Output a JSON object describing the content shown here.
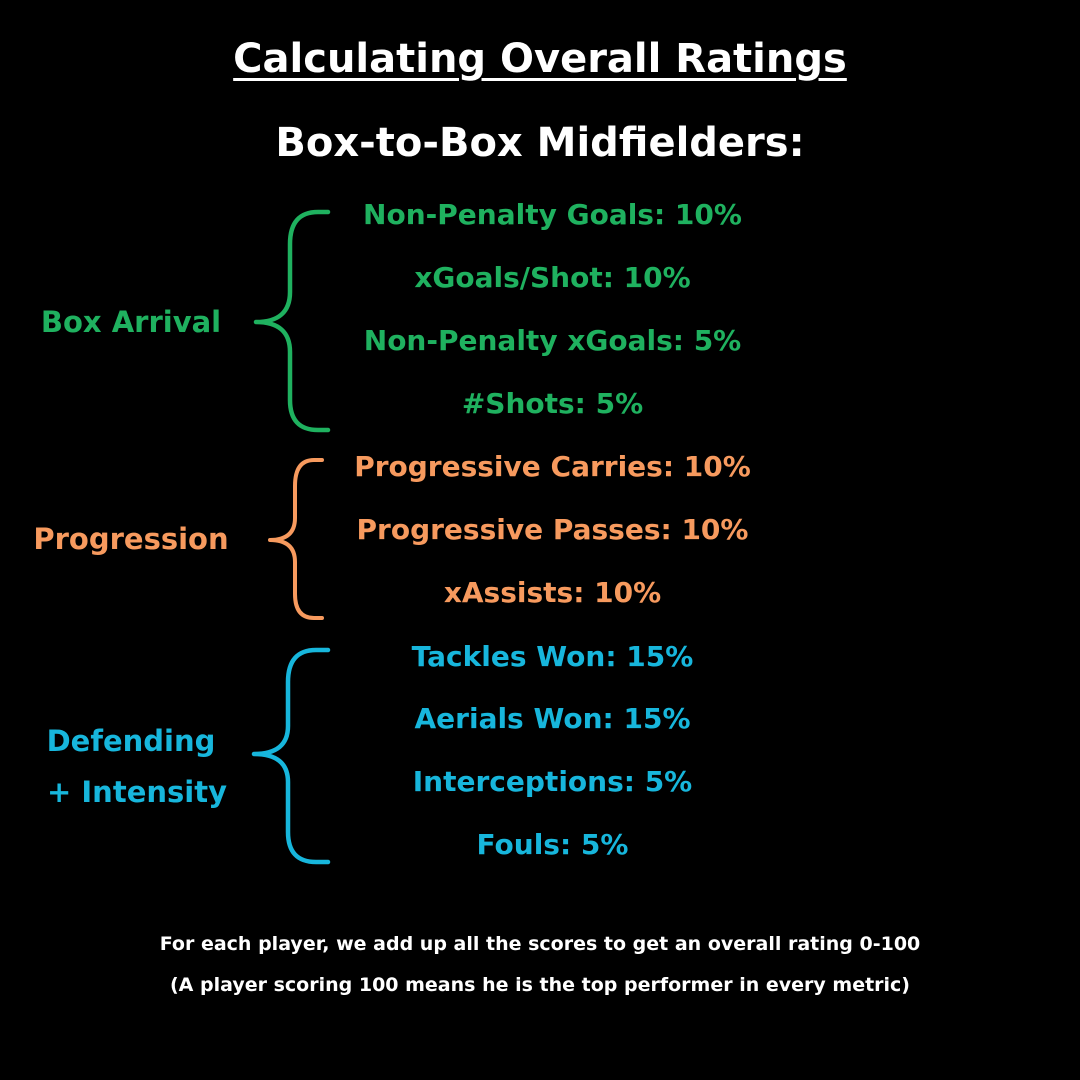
{
  "title": "Calculating Overall Ratings",
  "subtitle": "Box-to-Box Midfielders:",
  "colors": {
    "background": "#000000",
    "text": "#ffffff",
    "box_arrival": "#1fb15f",
    "progression": "#f79a5e",
    "defending": "#17b6dc"
  },
  "groups": {
    "box_arrival": {
      "label": "Box Arrival",
      "metrics": [
        "Non-Penalty Goals: 10%",
        "xGoals/Shot: 10%",
        "Non-Penalty xGoals: 5%",
        "#Shots: 5%"
      ]
    },
    "progression": {
      "label": "Progression",
      "metrics": [
        "Progressive Carries: 10%",
        "Progressive Passes: 10%",
        "xAssists: 10%"
      ]
    },
    "defending": {
      "label_line1": "Defending",
      "label_line2": "+ Intensity",
      "metrics": [
        "Tackles Won: 15%",
        "Aerials Won: 15%",
        "Interceptions: 5%",
        "Fouls: 5%"
      ]
    }
  },
  "footer": {
    "line1": "For each player, we add up all the scores to get an overall rating 0-100",
    "line2": "(A player scoring 100 means he is the top performer in every metric)"
  }
}
